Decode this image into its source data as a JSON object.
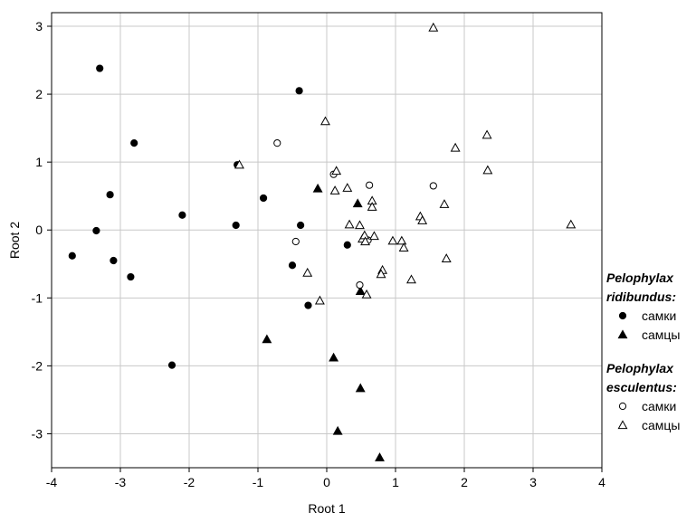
{
  "chart_data": {
    "type": "scatter",
    "xlabel": "Root 1",
    "ylabel": "Root 2",
    "xlim": [
      -4,
      4
    ],
    "ylim": [
      -3.5,
      3.2
    ],
    "xticks": [
      -4,
      -3,
      -2,
      -1,
      0,
      1,
      2,
      3,
      4
    ],
    "yticks": [
      -3,
      -2,
      -1,
      0,
      1,
      2,
      3
    ],
    "xtick_labels": [
      "-4",
      "-3",
      "-2",
      "-1",
      "0",
      "1",
      "2",
      "3",
      "4"
    ],
    "ytick_labels": [
      "-3",
      "-2",
      "-1",
      "0",
      "1",
      "2",
      "3"
    ],
    "grid": true,
    "legend_position": "right",
    "legend": {
      "groups": [
        {
          "title_lines": [
            "Pelophylax",
            "ridibundus:"
          ],
          "entries": [
            {
              "label": "самки",
              "marker": "circle",
              "filled": true
            },
            {
              "label": "самцы",
              "marker": "triangle",
              "filled": true
            }
          ]
        },
        {
          "title_lines": [
            "Pelophylax",
            "esculentus:"
          ],
          "entries": [
            {
              "label": "самки",
              "marker": "circle",
              "filled": false
            },
            {
              "label": "самцы",
              "marker": "triangle",
              "filled": false
            }
          ]
        }
      ]
    },
    "series": [
      {
        "marker": "circle",
        "filled": true,
        "points": [
          [
            -3.3,
            2.38
          ],
          [
            -2.8,
            1.28
          ],
          [
            -3.15,
            0.52
          ],
          [
            -3.35,
            -0.01
          ],
          [
            -3.7,
            -0.38
          ],
          [
            -3.1,
            -0.45
          ],
          [
            -2.85,
            -0.69
          ],
          [
            -2.1,
            0.22
          ],
          [
            -2.25,
            -1.99
          ],
          [
            -1.3,
            0.96
          ],
          [
            -1.32,
            0.07
          ],
          [
            -0.92,
            0.47
          ],
          [
            -0.4,
            2.05
          ],
          [
            -0.38,
            0.07
          ],
          [
            -0.5,
            -0.52
          ],
          [
            -0.27,
            -1.11
          ],
          [
            0.3,
            -0.22
          ]
        ]
      },
      {
        "marker": "triangle",
        "filled": true,
        "points": [
          [
            -0.13,
            0.61
          ],
          [
            0.45,
            0.39
          ],
          [
            -0.87,
            -1.61
          ],
          [
            0.49,
            -0.9
          ],
          [
            0.1,
            -1.88
          ],
          [
            0.49,
            -2.33
          ],
          [
            0.16,
            -2.96
          ],
          [
            0.77,
            -3.35
          ]
        ]
      },
      {
        "marker": "circle",
        "filled": false,
        "points": [
          [
            -0.72,
            1.28
          ],
          [
            -0.45,
            -0.17
          ],
          [
            0.1,
            0.82
          ],
          [
            0.62,
            0.66
          ],
          [
            0.6,
            -0.15
          ],
          [
            0.48,
            -0.81
          ],
          [
            1.55,
            0.65
          ]
        ]
      },
      {
        "marker": "triangle",
        "filled": false,
        "points": [
          [
            1.55,
            2.98
          ],
          [
            -0.02,
            1.6
          ],
          [
            -1.27,
            0.96
          ],
          [
            0.14,
            0.87
          ],
          [
            0.12,
            0.58
          ],
          [
            0.3,
            0.62
          ],
          [
            0.33,
            0.08
          ],
          [
            0.48,
            0.07
          ],
          [
            0.66,
            0.43
          ],
          [
            0.66,
            0.34
          ],
          [
            0.52,
            -0.13
          ],
          [
            0.55,
            -0.08
          ],
          [
            0.69,
            -0.09
          ],
          [
            0.56,
            -0.17
          ],
          [
            0.96,
            -0.16
          ],
          [
            1.09,
            -0.16
          ],
          [
            1.12,
            -0.26
          ],
          [
            1.36,
            0.2
          ],
          [
            1.39,
            0.14
          ],
          [
            1.71,
            0.38
          ],
          [
            1.87,
            1.21
          ],
          [
            2.33,
            1.4
          ],
          [
            2.34,
            0.88
          ],
          [
            3.55,
            0.08
          ],
          [
            1.74,
            -0.42
          ],
          [
            0.81,
            -0.59
          ],
          [
            0.79,
            -0.65
          ],
          [
            1.23,
            -0.73
          ],
          [
            0.58,
            -0.95
          ],
          [
            -0.1,
            -1.04
          ],
          [
            -0.28,
            -0.63
          ]
        ]
      }
    ]
  }
}
